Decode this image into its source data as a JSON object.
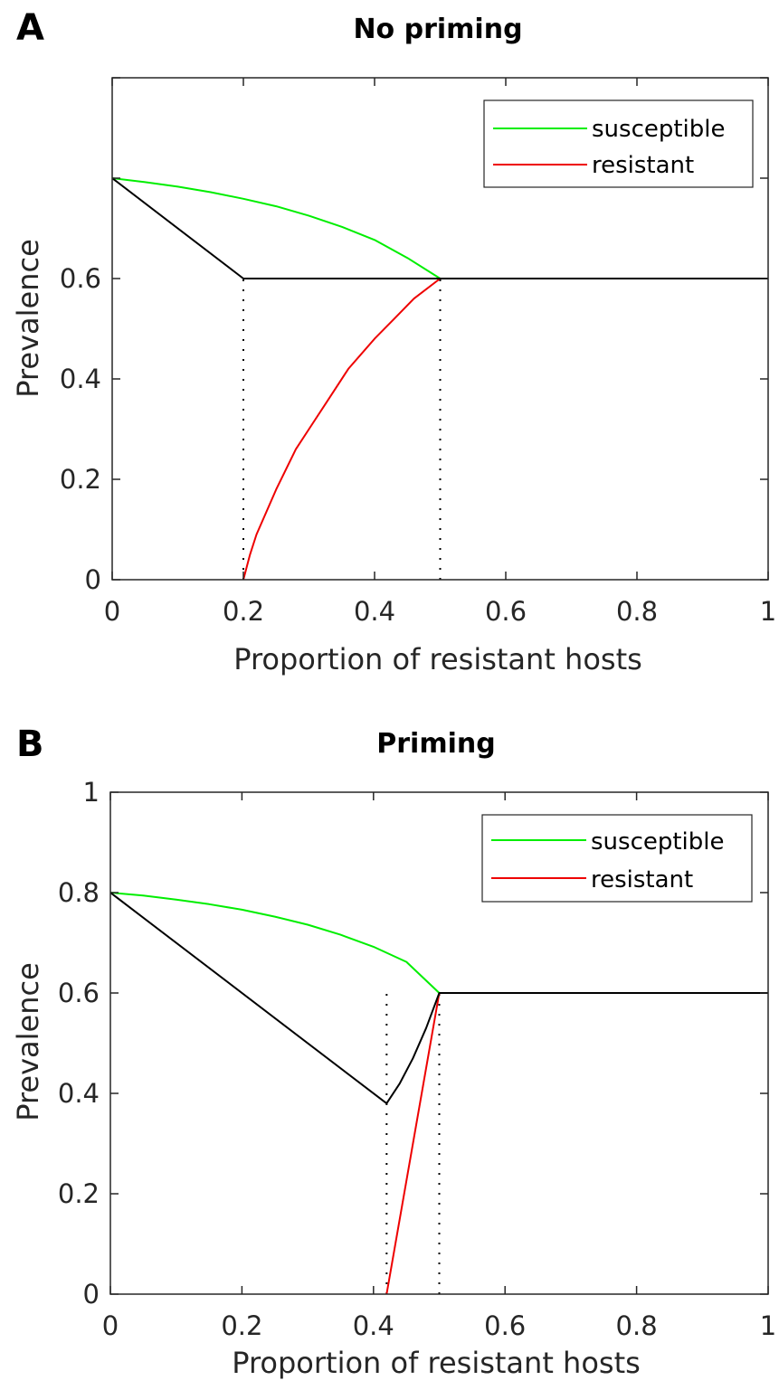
{
  "chart_data": [
    {
      "type": "line",
      "panel_label": "A",
      "title": "No priming",
      "xlabel": "Proportion of resistant hosts",
      "ylabel": "Prevalence",
      "xlim": [
        0,
        1
      ],
      "ylim": [
        0,
        1
      ],
      "xticks": [
        0,
        0.2,
        0.4,
        0.6,
        0.8,
        1
      ],
      "xtick_labels": [
        "0",
        "0.2",
        "0.4",
        "0.6",
        "0.8",
        "1"
      ],
      "yticks": [
        0,
        0.2,
        0.4,
        0.6
      ],
      "ytick_labels": [
        "0",
        "0.2",
        "0.4",
        "0.6"
      ],
      "grid": false,
      "legend_position": "top-right",
      "series": [
        {
          "name": "susceptible",
          "color": "#00ee00",
          "x": [
            0,
            0.05,
            0.1,
            0.15,
            0.2,
            0.25,
            0.3,
            0.35,
            0.4,
            0.45,
            0.5
          ],
          "y": [
            0.8,
            0.792,
            0.783,
            0.772,
            0.759,
            0.744,
            0.725,
            0.703,
            0.677,
            0.641,
            0.6
          ]
        },
        {
          "name": "resistant",
          "color": "#ee0000",
          "x": [
            0.2,
            0.21,
            0.22,
            0.25,
            0.28,
            0.3,
            0.33,
            0.36,
            0.4,
            0.43,
            0.46,
            0.5
          ],
          "y": [
            0,
            0.05,
            0.09,
            0.18,
            0.26,
            0.3,
            0.36,
            0.42,
            0.48,
            0.52,
            0.56,
            0.6
          ]
        },
        {
          "color": "#000000",
          "x": [
            0,
            0.2,
            0.5,
            1
          ],
          "y": [
            0.8,
            0.6,
            0.6,
            0.6
          ]
        }
      ],
      "vlines": [
        0.2,
        0.5
      ],
      "legend": [
        {
          "label": "susceptible",
          "color": "#00ee00"
        },
        {
          "label": "resistant",
          "color": "#ee0000"
        }
      ]
    },
    {
      "type": "line",
      "panel_label": "B",
      "title": "Priming",
      "xlabel": "Proportion of resistant hosts",
      "ylabel": "Prevalence",
      "xlim": [
        0,
        1
      ],
      "ylim": [
        0,
        1
      ],
      "xticks": [
        0,
        0.2,
        0.4,
        0.6,
        0.8,
        1
      ],
      "xtick_labels": [
        "0",
        "0.2",
        "0.4",
        "0.6",
        "0.8",
        "1"
      ],
      "yticks": [
        0,
        0.2,
        0.4,
        0.6,
        0.8,
        1
      ],
      "ytick_labels": [
        "0",
        "0.2",
        "0.4",
        "0.6",
        "0.8",
        "1"
      ],
      "grid": false,
      "legend_position": "top-right",
      "series": [
        {
          "name": "susceptible",
          "color": "#00ee00",
          "x": [
            0,
            0.05,
            0.1,
            0.15,
            0.2,
            0.25,
            0.3,
            0.35,
            0.4,
            0.45,
            0.5
          ],
          "y": [
            0.8,
            0.794,
            0.786,
            0.777,
            0.766,
            0.752,
            0.736,
            0.716,
            0.692,
            0.662,
            0.6
          ]
        },
        {
          "name": "resistant",
          "color": "#ee0000",
          "x": [
            0.42,
            0.5
          ],
          "y": [
            0,
            0.6
          ]
        },
        {
          "color": "#000000",
          "x": [
            0,
            0.42,
            0.44,
            0.46,
            0.48,
            0.5,
            1
          ],
          "y": [
            0.8,
            0.38,
            0.42,
            0.47,
            0.53,
            0.6,
            0.6
          ]
        }
      ],
      "vlines": [
        0.42,
        0.5
      ],
      "legend": [
        {
          "label": "susceptible",
          "color": "#00ee00"
        },
        {
          "label": "resistant",
          "color": "#ee0000"
        }
      ]
    }
  ]
}
